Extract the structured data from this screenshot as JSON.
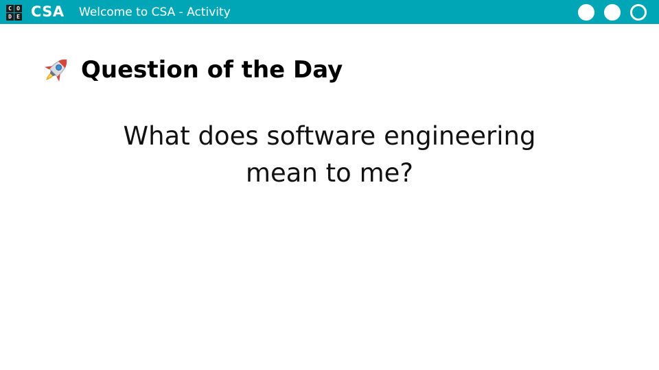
{
  "header": {
    "logo_letters": [
      "C",
      "O",
      "D",
      "E"
    ],
    "brand": "CSA",
    "title": "Welcome to CSA - Activity",
    "background_color": "#00A6B5",
    "controls": [
      {
        "name": "circle-button-1",
        "style": "filled"
      },
      {
        "name": "circle-button-2",
        "style": "filled"
      },
      {
        "name": "circle-button-3",
        "style": "outline"
      }
    ]
  },
  "section": {
    "icon": "rocket-icon",
    "title": "Question of the Day"
  },
  "question": {
    "line1": "What does software engineering",
    "line2": "mean to me?"
  }
}
